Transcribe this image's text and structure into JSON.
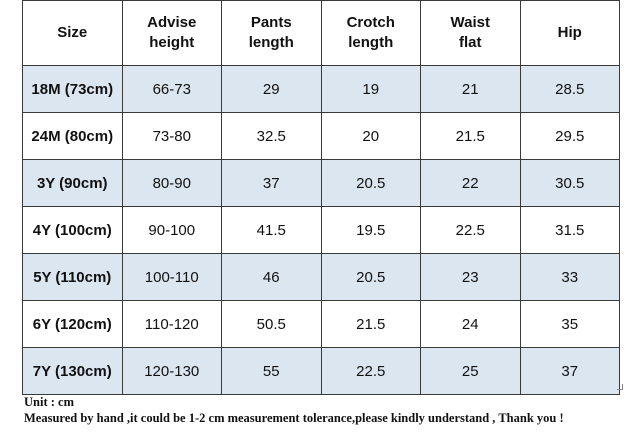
{
  "table": {
    "columns": [
      {
        "key": "size",
        "line1": "Size",
        "line2": ""
      },
      {
        "key": "advise_height",
        "line1": "Advise",
        "line2": "height"
      },
      {
        "key": "pants_length",
        "line1": "Pants",
        "line2": "length"
      },
      {
        "key": "crotch_length",
        "line1": "Crotch",
        "line2": "length"
      },
      {
        "key": "waist_flat",
        "line1": "Waist",
        "line2": "flat"
      },
      {
        "key": "hip",
        "line1": "Hip",
        "line2": ""
      }
    ],
    "rows": [
      {
        "size": "18M (73cm)",
        "advise_height": "66-73",
        "pants_length": "29",
        "crotch_length": "19",
        "waist_flat": "21",
        "hip": "28.5"
      },
      {
        "size": "24M (80cm)",
        "advise_height": "73-80",
        "pants_length": "32.5",
        "crotch_length": "20",
        "waist_flat": "21.5",
        "hip": "29.5"
      },
      {
        "size": "3Y (90cm)",
        "advise_height": "80-90",
        "pants_length": "37",
        "crotch_length": "20.5",
        "waist_flat": "22",
        "hip": "30.5"
      },
      {
        "size": "4Y (100cm)",
        "advise_height": "90-100",
        "pants_length": "41.5",
        "crotch_length": "19.5",
        "waist_flat": "22.5",
        "hip": "31.5"
      },
      {
        "size": "5Y (110cm)",
        "advise_height": "100-110",
        "pants_length": "46",
        "crotch_length": "20.5",
        "waist_flat": "23",
        "hip": "33"
      },
      {
        "size": "6Y (120cm)",
        "advise_height": "110-120",
        "pants_length": "50.5",
        "crotch_length": "21.5",
        "waist_flat": "24",
        "hip": "35"
      },
      {
        "size": "7Y (130cm)",
        "advise_height": "120-130",
        "pants_length": "55",
        "crotch_length": "22.5",
        "waist_flat": "25",
        "hip": "37"
      }
    ]
  },
  "notes": {
    "unit": "Unit : cm",
    "tolerance": "Measured by hand ,it could be 1-2 cm measurement tolerance,please kindly understand , Thank you !"
  },
  "colors": {
    "header_bg": "#ffffff",
    "shaded_row_bg": "#dce6f1",
    "border": "#3a3a3a",
    "text": "#111111"
  }
}
